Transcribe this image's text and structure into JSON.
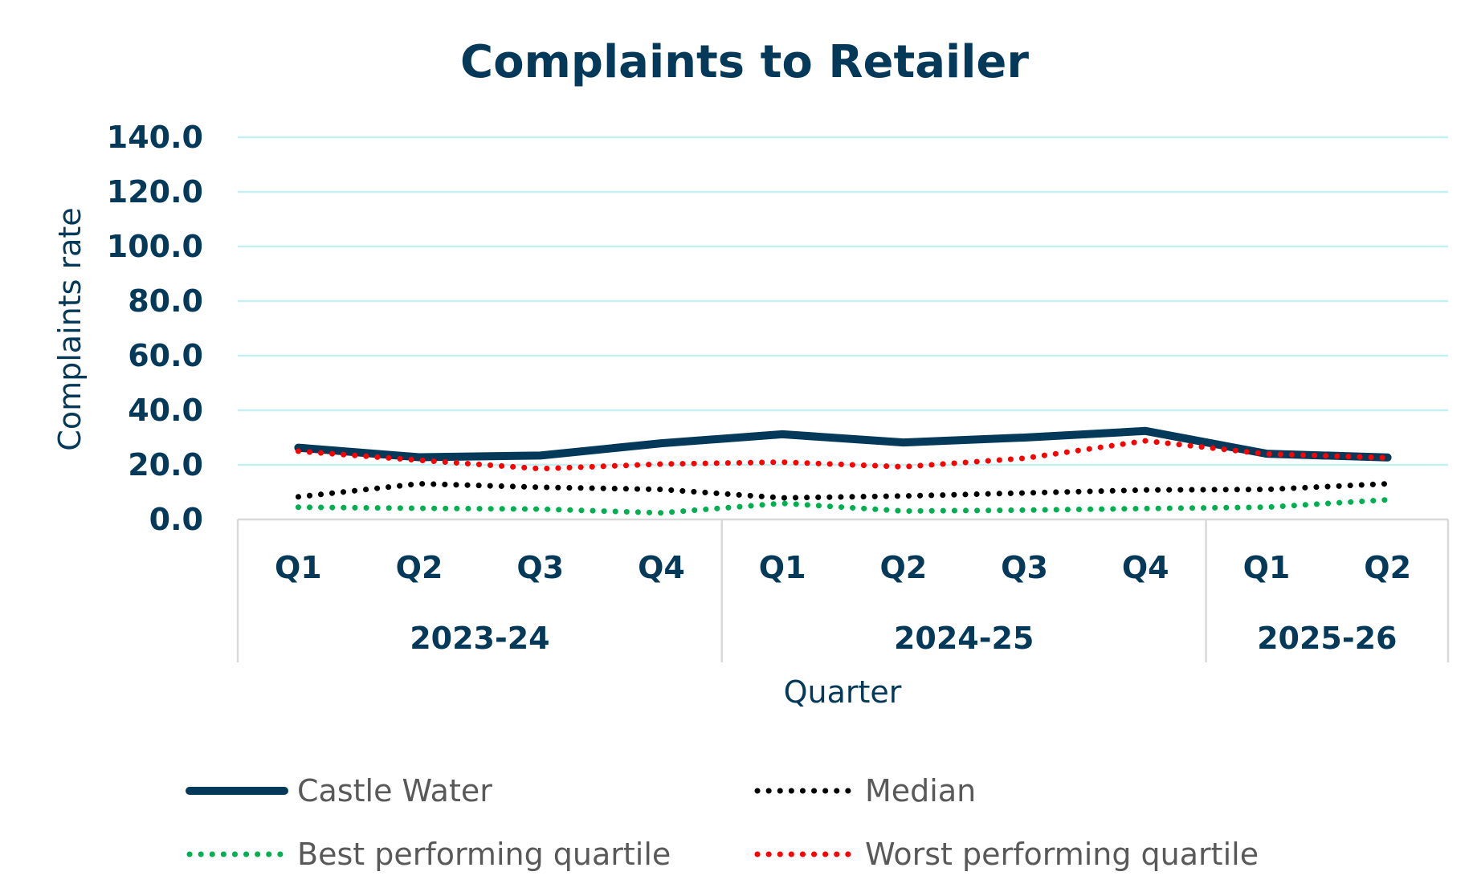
{
  "chart_data": {
    "type": "line",
    "title": "Complaints to Retailer",
    "xlabel": "Quarter",
    "ylabel": "Complaints rate",
    "ylim": [
      0,
      140
    ],
    "yticks": [
      "0.0",
      "20.0",
      "40.0",
      "60.0",
      "80.0",
      "100.0",
      "120.0",
      "140.0"
    ],
    "grid": true,
    "legend_position": "bottom",
    "categories": [
      "Q1",
      "Q2",
      "Q3",
      "Q4",
      "Q1",
      "Q2",
      "Q3",
      "Q4",
      "Q1",
      "Q2"
    ],
    "groups": [
      {
        "label": "2023-24",
        "count": 4
      },
      {
        "label": "2024-25",
        "count": 4
      },
      {
        "label": "2025-26",
        "count": 2
      }
    ],
    "series": [
      {
        "name": "Castle Water",
        "color": "#043959",
        "style": "solid",
        "values": [
          26.3,
          22.8,
          23.4,
          27.9,
          31.2,
          28.2,
          30.0,
          32.4,
          24.1,
          22.7
        ]
      },
      {
        "name": "Median",
        "color": "#000000",
        "style": "dotted",
        "values": [
          8.3,
          13.1,
          11.8,
          11.0,
          7.9,
          8.6,
          9.7,
          10.8,
          11.0,
          13.1
        ]
      },
      {
        "name": "Best performing quartile",
        "color": "#00b050",
        "style": "dotted",
        "values": [
          4.5,
          4.1,
          3.8,
          2.4,
          5.9,
          3.1,
          3.4,
          4.0,
          4.5,
          7.2
        ]
      },
      {
        "name": "Worst performing quartile",
        "color": "#ff0000",
        "style": "dotted",
        "values": [
          25.0,
          21.7,
          18.6,
          20.3,
          21.0,
          19.3,
          22.4,
          28.8,
          24.0,
          22.6
        ]
      }
    ],
    "colors": {
      "title": "#043959",
      "axis_text": "#043959",
      "grid": "#c5f0f2",
      "legend_text": "#595959",
      "axis_line": "#d9d9d9"
    }
  }
}
